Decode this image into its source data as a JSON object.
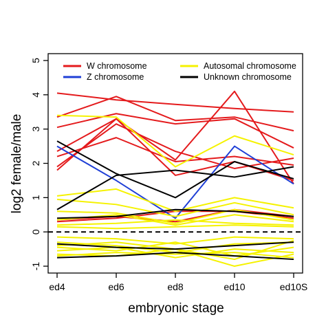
{
  "chart_data": {
    "type": "line",
    "xlabel": "embryonic stage",
    "ylabel": "log2 female/male",
    "categories": [
      "ed4",
      "ed6",
      "ed8",
      "ed10",
      "ed10S"
    ],
    "ylim": [
      -1.2,
      5.2
    ],
    "yticks": [
      -1,
      0,
      1,
      2,
      3,
      4,
      5
    ],
    "reference_line": {
      "y": 0,
      "style": "dashed"
    },
    "legend": {
      "placement": "top",
      "entries": [
        {
          "label": "W chromosome",
          "color": "#e41a1c"
        },
        {
          "label": "Z  chromosome",
          "color": "#1f3fd6"
        },
        {
          "label": "Autosomal chromosome",
          "color": "#f5f200"
        },
        {
          "label": "Unknown chromosome",
          "color": "#000000"
        }
      ]
    },
    "series": [
      {
        "group": "W chromosome",
        "color": "#e41a1c",
        "lines": [
          [
            4.05,
            3.85,
            3.72,
            3.6,
            3.5
          ],
          [
            3.35,
            3.95,
            3.25,
            3.35,
            2.95
          ],
          [
            3.05,
            3.45,
            3.15,
            3.3,
            2.45
          ],
          [
            2.35,
            3.3,
            2.1,
            4.1,
            1.4
          ],
          [
            2.2,
            2.75,
            2.05,
            2.2,
            1.95
          ],
          [
            1.8,
            3.3,
            1.65,
            2.05,
            1.5
          ],
          [
            1.9,
            3.15,
            2.35,
            1.85,
            2.15
          ],
          [
            0.35,
            0.45,
            0.3,
            0.65,
            0.45
          ],
          [
            0.3,
            0.4,
            0.6,
            0.6,
            0.4
          ]
        ]
      },
      {
        "group": "Z  chromosome",
        "color": "#1f3fd6",
        "lines": [
          [
            2.5,
            1.5,
            0.4,
            2.5,
            1.4
          ]
        ]
      },
      {
        "group": "Autosomal chromosome",
        "color": "#f5f200",
        "lines": [
          [
            3.4,
            3.35,
            1.9,
            2.8,
            2.25
          ],
          [
            1.05,
            1.25,
            0.6,
            1.0,
            0.7
          ],
          [
            0.95,
            0.8,
            0.45,
            0.85,
            0.5
          ],
          [
            0.6,
            0.55,
            0.25,
            0.65,
            0.35
          ],
          [
            0.35,
            0.5,
            0.2,
            0.5,
            0.3
          ],
          [
            0.2,
            0.25,
            0.35,
            0.25,
            0.2
          ],
          [
            0.15,
            0.1,
            0.15,
            0.2,
            0.15
          ],
          [
            -0.15,
            -0.2,
            -0.35,
            -0.15,
            -0.2
          ],
          [
            -0.3,
            -0.4,
            -0.6,
            -0.35,
            -0.3
          ],
          [
            -0.45,
            -0.55,
            -0.3,
            -0.7,
            -0.45
          ],
          [
            -0.55,
            -0.45,
            -0.75,
            -0.5,
            -0.6
          ],
          [
            -0.65,
            -0.7,
            -0.5,
            -1.0,
            -0.65
          ],
          [
            -0.4,
            -0.3,
            -0.5,
            -0.8,
            -0.25
          ],
          [
            -0.7,
            -0.6,
            -0.65,
            -0.6,
            -0.75
          ]
        ]
      },
      {
        "group": "Unknown chromosome",
        "color": "#000000",
        "lines": [
          [
            2.65,
            1.7,
            1.0,
            2.05,
            1.55
          ],
          [
            0.65,
            1.65,
            1.8,
            1.6,
            1.9
          ],
          [
            0.4,
            0.45,
            0.65,
            0.6,
            0.45
          ],
          [
            -0.35,
            -0.45,
            -0.5,
            -0.4,
            -0.3
          ],
          [
            -0.75,
            -0.7,
            -0.6,
            -0.7,
            -0.8
          ]
        ]
      }
    ]
  }
}
